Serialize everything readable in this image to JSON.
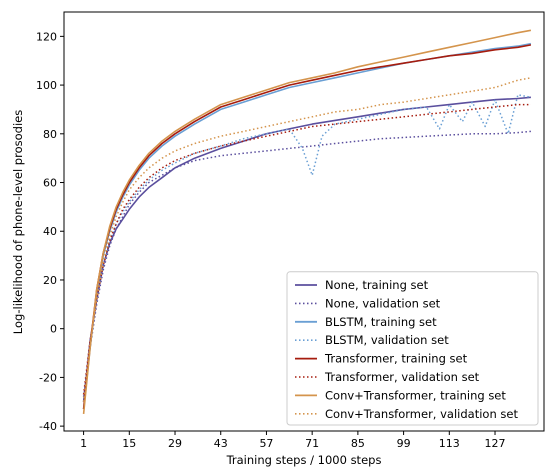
{
  "chart_data": {
    "type": "line",
    "title": "",
    "xlabel": "Training steps / 1000 steps",
    "ylabel": "Log-likelihood of phone-level prosodies",
    "xlim": [
      -5,
      142
    ],
    "ylim": [
      -42,
      130
    ],
    "xticks": [
      1,
      15,
      29,
      43,
      57,
      71,
      85,
      99,
      113,
      127
    ],
    "yticks": [
      -40,
      -20,
      0,
      20,
      40,
      60,
      80,
      100,
      120
    ],
    "legend_position": "bottom-right",
    "grid": false,
    "series": [
      {
        "name": "None, training set",
        "color": "#5b4f9e",
        "style": "solid",
        "x": [
          1,
          3,
          5,
          7,
          9,
          11,
          13,
          15,
          18,
          21,
          25,
          29,
          35,
          43,
          50,
          57,
          64,
          71,
          78,
          85,
          92,
          99,
          106,
          113,
          120,
          127,
          134,
          138
        ],
        "y": [
          -30,
          -5,
          12,
          26,
          35,
          41,
          45,
          49,
          54,
          58,
          62,
          66,
          70,
          74,
          77,
          80,
          82,
          84,
          85.5,
          87,
          88.5,
          90,
          91,
          92,
          93,
          94,
          94.5,
          95
        ]
      },
      {
        "name": "None, validation set",
        "color": "#5b4f9e",
        "style": "dotted",
        "x": [
          1,
          3,
          5,
          7,
          9,
          11,
          13,
          15,
          18,
          21,
          25,
          29,
          35,
          43,
          50,
          57,
          64,
          71,
          78,
          85,
          92,
          99,
          106,
          113,
          120,
          127,
          134,
          138
        ],
        "y": [
          -28,
          -8,
          10,
          24,
          34,
          41,
          46,
          51,
          56,
          60,
          63,
          66,
          69,
          71,
          72,
          73,
          74,
          75,
          76,
          77,
          78,
          78.5,
          79,
          79.5,
          80,
          80,
          80.5,
          81
        ]
      },
      {
        "name": "BLSTM, training set",
        "color": "#6a9fd4",
        "style": "solid",
        "x": [
          1,
          3,
          5,
          7,
          9,
          11,
          13,
          15,
          18,
          21,
          25,
          29,
          35,
          43,
          50,
          57,
          64,
          71,
          78,
          85,
          92,
          99,
          106,
          113,
          120,
          127,
          134,
          138
        ],
        "y": [
          -33,
          -8,
          15,
          30,
          40,
          48,
          54,
          59,
          65,
          70,
          75,
          79,
          84,
          90,
          93,
          96,
          99,
          101,
          103,
          105,
          107,
          109,
          110.5,
          112,
          113.5,
          115,
          116,
          117
        ]
      },
      {
        "name": "BLSTM, validation set",
        "color": "#6a9fd4",
        "style": "dotted",
        "x": [
          1,
          3,
          5,
          7,
          9,
          11,
          13,
          15,
          18,
          21,
          25,
          29,
          35,
          43,
          50,
          57,
          64,
          68,
          71,
          74,
          78,
          85,
          92,
          99,
          106,
          110,
          113,
          117,
          120,
          124,
          127,
          131,
          134,
          138
        ],
        "y": [
          -30,
          -6,
          12,
          26,
          36,
          43,
          48,
          52,
          57,
          61,
          65,
          68,
          72,
          75,
          78,
          80,
          82,
          74,
          63,
          79,
          84,
          86,
          88,
          90,
          91,
          82,
          92,
          85,
          93,
          83,
          94,
          80,
          96,
          95
        ]
      },
      {
        "name": "Transformer, training set",
        "color": "#a61c0e",
        "style": "solid",
        "x": [
          1,
          3,
          5,
          7,
          9,
          11,
          13,
          15,
          18,
          21,
          25,
          29,
          35,
          43,
          50,
          57,
          64,
          71,
          78,
          85,
          92,
          99,
          106,
          113,
          120,
          127,
          134,
          138
        ],
        "y": [
          -33,
          -7,
          16,
          31,
          41,
          49,
          55,
          60,
          66,
          71,
          76,
          80,
          85,
          91,
          94,
          97,
          100,
          102,
          104,
          106,
          107.5,
          109,
          110.5,
          112,
          113,
          114.5,
          115.5,
          116.5
        ]
      },
      {
        "name": "Transformer, validation set",
        "color": "#a61c0e",
        "style": "dotted",
        "x": [
          1,
          3,
          5,
          7,
          9,
          11,
          13,
          15,
          18,
          21,
          25,
          29,
          35,
          43,
          50,
          57,
          64,
          71,
          78,
          85,
          92,
          99,
          106,
          113,
          120,
          127,
          134,
          138
        ],
        "y": [
          -27,
          -5,
          12,
          26,
          36,
          43,
          49,
          53,
          58,
          62,
          66,
          69,
          72,
          75,
          77,
          79,
          81,
          83,
          84,
          85,
          86,
          87,
          88,
          89,
          90,
          91,
          92,
          92
        ]
      },
      {
        "name": "Conv+Transformer, training set",
        "color": "#d4944c",
        "style": "solid",
        "x": [
          1,
          3,
          5,
          7,
          9,
          11,
          13,
          15,
          18,
          21,
          25,
          29,
          35,
          43,
          50,
          57,
          64,
          71,
          78,
          85,
          92,
          99,
          106,
          113,
          120,
          127,
          134,
          138
        ],
        "y": [
          -35,
          -8,
          16,
          31,
          42,
          50,
          56,
          61,
          67,
          72,
          77,
          81,
          86,
          92,
          95,
          98,
          101,
          103,
          105,
          107.5,
          109.5,
          111.5,
          113.5,
          115.5,
          117.5,
          119.5,
          121.5,
          122.5
        ]
      },
      {
        "name": "Conv+Transformer, validation set",
        "color": "#d4944c",
        "style": "dotted",
        "x": [
          1,
          3,
          5,
          7,
          9,
          11,
          13,
          15,
          18,
          21,
          25,
          29,
          35,
          43,
          50,
          57,
          64,
          71,
          78,
          85,
          92,
          99,
          106,
          113,
          120,
          127,
          134,
          138
        ],
        "y": [
          -30,
          -6,
          12,
          27,
          38,
          46,
          52,
          57,
          62,
          66,
          70,
          73,
          76,
          79,
          81,
          83,
          85,
          87,
          89,
          90,
          92,
          93,
          94.5,
          96,
          97.5,
          99,
          102,
          103
        ]
      }
    ]
  }
}
